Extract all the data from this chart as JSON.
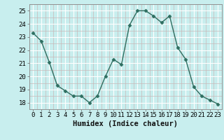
{
  "x": [
    0,
    1,
    2,
    3,
    4,
    5,
    6,
    7,
    8,
    9,
    10,
    11,
    12,
    13,
    14,
    15,
    16,
    17,
    18,
    19,
    20,
    21,
    22,
    23
  ],
  "y": [
    23.3,
    22.7,
    21.1,
    19.3,
    18.9,
    18.5,
    18.5,
    18.0,
    18.5,
    20.0,
    21.3,
    20.9,
    23.9,
    25.0,
    25.0,
    24.6,
    24.1,
    24.6,
    22.2,
    21.3,
    19.2,
    18.5,
    18.2,
    17.9
  ],
  "line_color": "#2e6e60",
  "marker": "D",
  "marker_size": 2.5,
  "bg_color": "#c8eeee",
  "grid_major_color": "#ffffff",
  "grid_minor_color": "#c8b8b8",
  "xlabel": "Humidex (Indice chaleur)",
  "ylim": [
    17.5,
    25.5
  ],
  "xlim": [
    -0.5,
    23.5
  ],
  "yticks": [
    18,
    19,
    20,
    21,
    22,
    23,
    24,
    25
  ],
  "xticks": [
    0,
    1,
    2,
    3,
    4,
    5,
    6,
    7,
    8,
    9,
    10,
    11,
    12,
    13,
    14,
    15,
    16,
    17,
    18,
    19,
    20,
    21,
    22,
    23
  ],
  "tick_fontsize": 6.5,
  "xlabel_fontsize": 7.5
}
